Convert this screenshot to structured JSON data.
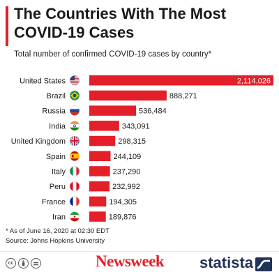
{
  "header": {
    "title": "The Countries With The Most COVID-19 Cases",
    "subtitle": "Total number of confirmed COVID-19 cases by country*"
  },
  "footer": {
    "note": "* As of June 16, 2020 at 02:30 EDT",
    "source": "Source: Johns Hopkins University",
    "newsweek": "Newsweek",
    "statista": "statista"
  },
  "colors": {
    "bar": "#e3202a",
    "brand_red": "#e3202a",
    "statista_navy": "#22335a"
  },
  "chart_data": {
    "type": "bar",
    "orientation": "horizontal",
    "title": "The Countries With The Most COVID-19 Cases",
    "subtitle": "Total number of confirmed COVID-19 cases by country*",
    "categories": [
      "United States",
      "Brazil",
      "Russia",
      "India",
      "United Kingdom",
      "Spain",
      "Italy",
      "Peru",
      "France",
      "Iran"
    ],
    "values": [
      2114026,
      888271,
      536484,
      343091,
      298315,
      244109,
      237290,
      232992,
      194305,
      189876
    ],
    "value_labels": [
      "2,114,026",
      "888,271",
      "536,484",
      "343,091",
      "298,315",
      "244,109",
      "237,290",
      "232,992",
      "194,305",
      "189,876"
    ],
    "flags": [
      "us-flag-icon",
      "brazil-flag-icon",
      "russia-flag-icon",
      "india-flag-icon",
      "uk-flag-icon",
      "spain-flag-icon",
      "italy-flag-icon",
      "peru-flag-icon",
      "france-flag-icon",
      "iran-flag-icon"
    ],
    "xlim": [
      0,
      2114026
    ],
    "grid": false,
    "legend": "none"
  }
}
